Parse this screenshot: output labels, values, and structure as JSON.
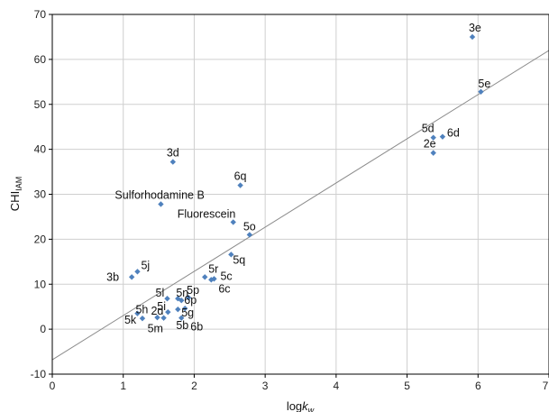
{
  "chart_data": {
    "type": "scatter",
    "title": "",
    "xlabel": {
      "main": "log",
      "italic": "k",
      "sub": "w"
    },
    "ylabel": {
      "main": "CHI",
      "sub": "IAM"
    },
    "xlim": [
      0,
      7
    ],
    "ylim": [
      -10,
      70
    ],
    "xticks": [
      0,
      1,
      2,
      3,
      4,
      5,
      6,
      7
    ],
    "yticks": [
      -10,
      0,
      10,
      20,
      30,
      40,
      50,
      60,
      70
    ],
    "grid": true,
    "marker_color": "#4f81bd",
    "line_color": "#8c8c8c",
    "points": [
      {
        "label": "3e",
        "x": 5.92,
        "y": 65.0
      },
      {
        "label": "5e",
        "x": 6.04,
        "y": 52.8
      },
      {
        "label": "5d",
        "x": 5.37,
        "y": 42.6
      },
      {
        "label": "6d",
        "x": 5.5,
        "y": 42.8
      },
      {
        "label": "2e",
        "x": 5.37,
        "y": 39.2
      },
      {
        "label": "3d",
        "x": 1.7,
        "y": 37.2
      },
      {
        "label": "6q",
        "x": 2.65,
        "y": 32.0
      },
      {
        "label": "Sulforhodamine B",
        "x": 1.53,
        "y": 27.8
      },
      {
        "label": "Fluorescein",
        "x": 2.55,
        "y": 23.8
      },
      {
        "label": "5o",
        "x": 2.78,
        "y": 21.0
      },
      {
        "label": "5q",
        "x": 2.52,
        "y": 16.6
      },
      {
        "label": "3b",
        "x": 1.12,
        "y": 11.6
      },
      {
        "label": "5j",
        "x": 1.2,
        "y": 12.8
      },
      {
        "label": "5r",
        "x": 2.15,
        "y": 11.6
      },
      {
        "label": "5c",
        "x": 2.28,
        "y": 11.2
      },
      {
        "label": "6c",
        "x": 2.24,
        "y": 11.0
      },
      {
        "label": "5p",
        "x": 1.92,
        "y": 7.0
      },
      {
        "label": "5l",
        "x": 1.62,
        "y": 6.8
      },
      {
        "label": "5n",
        "x": 1.77,
        "y": 6.8
      },
      {
        "label": "6p",
        "x": 1.82,
        "y": 6.4
      },
      {
        "label": "5g",
        "x": 1.87,
        "y": 4.6
      },
      {
        "label": "5i",
        "x": 1.63,
        "y": 3.8
      },
      {
        "label": "5h",
        "x": 1.2,
        "y": 3.5
      },
      {
        "label": "2d",
        "x": 1.48,
        "y": 2.6
      },
      {
        "label": "5k",
        "x": 1.27,
        "y": 2.4
      },
      {
        "label": "5m",
        "x": 1.57,
        "y": 2.5
      },
      {
        "label": "6b",
        "x": 1.82,
        "y": 2.5
      },
      {
        "label": "5b",
        "x": 1.77,
        "y": 4.4
      }
    ],
    "trendline": {
      "x": [
        -0.05,
        7.0
      ],
      "y": [
        -6.8,
        62.0
      ]
    }
  }
}
